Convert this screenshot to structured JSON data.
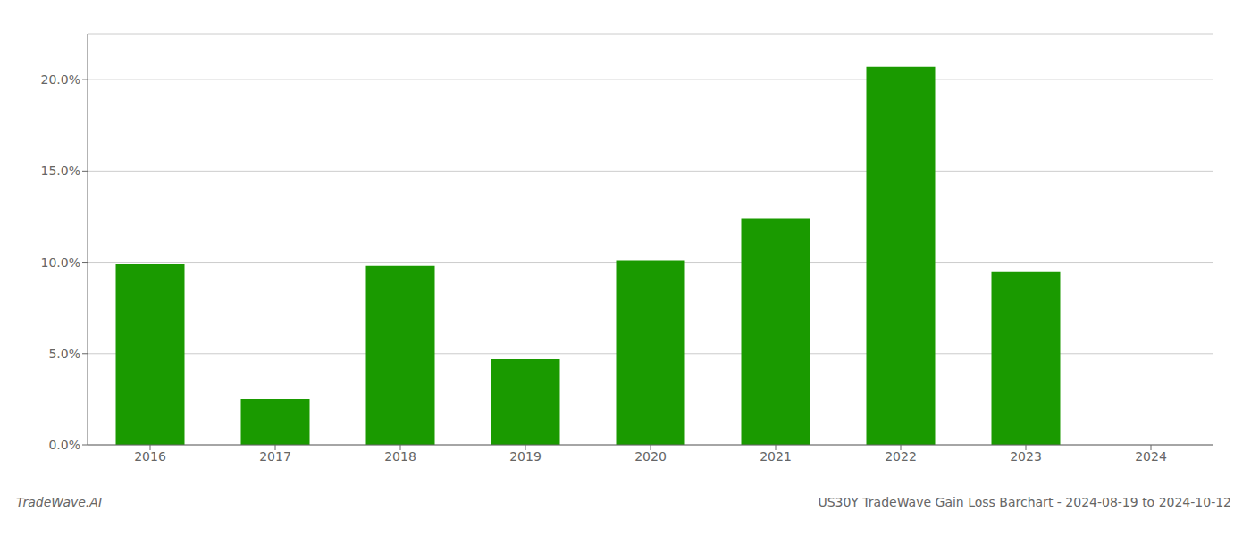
{
  "chart_data": {
    "type": "bar",
    "categories": [
      "2016",
      "2017",
      "2018",
      "2019",
      "2020",
      "2021",
      "2022",
      "2023",
      "2024"
    ],
    "values": [
      0.099,
      0.025,
      0.098,
      0.047,
      0.101,
      0.124,
      0.207,
      0.095,
      0.0
    ],
    "color": "#1a9a00",
    "ylim": [
      0,
      0.225
    ],
    "yticks": [
      {
        "value": 0.0,
        "label": "0.0%"
      },
      {
        "value": 0.05,
        "label": "5.0%"
      },
      {
        "value": 0.1,
        "label": "10.0%"
      },
      {
        "value": 0.15,
        "label": "15.0%"
      },
      {
        "value": 0.2,
        "label": "20.0%"
      }
    ],
    "grid": true,
    "annotations": [
      "TradeWave.AI",
      "US30Y TradeWave Gain Loss Barchart - 2024-08-19 to 2024-10-12"
    ]
  }
}
